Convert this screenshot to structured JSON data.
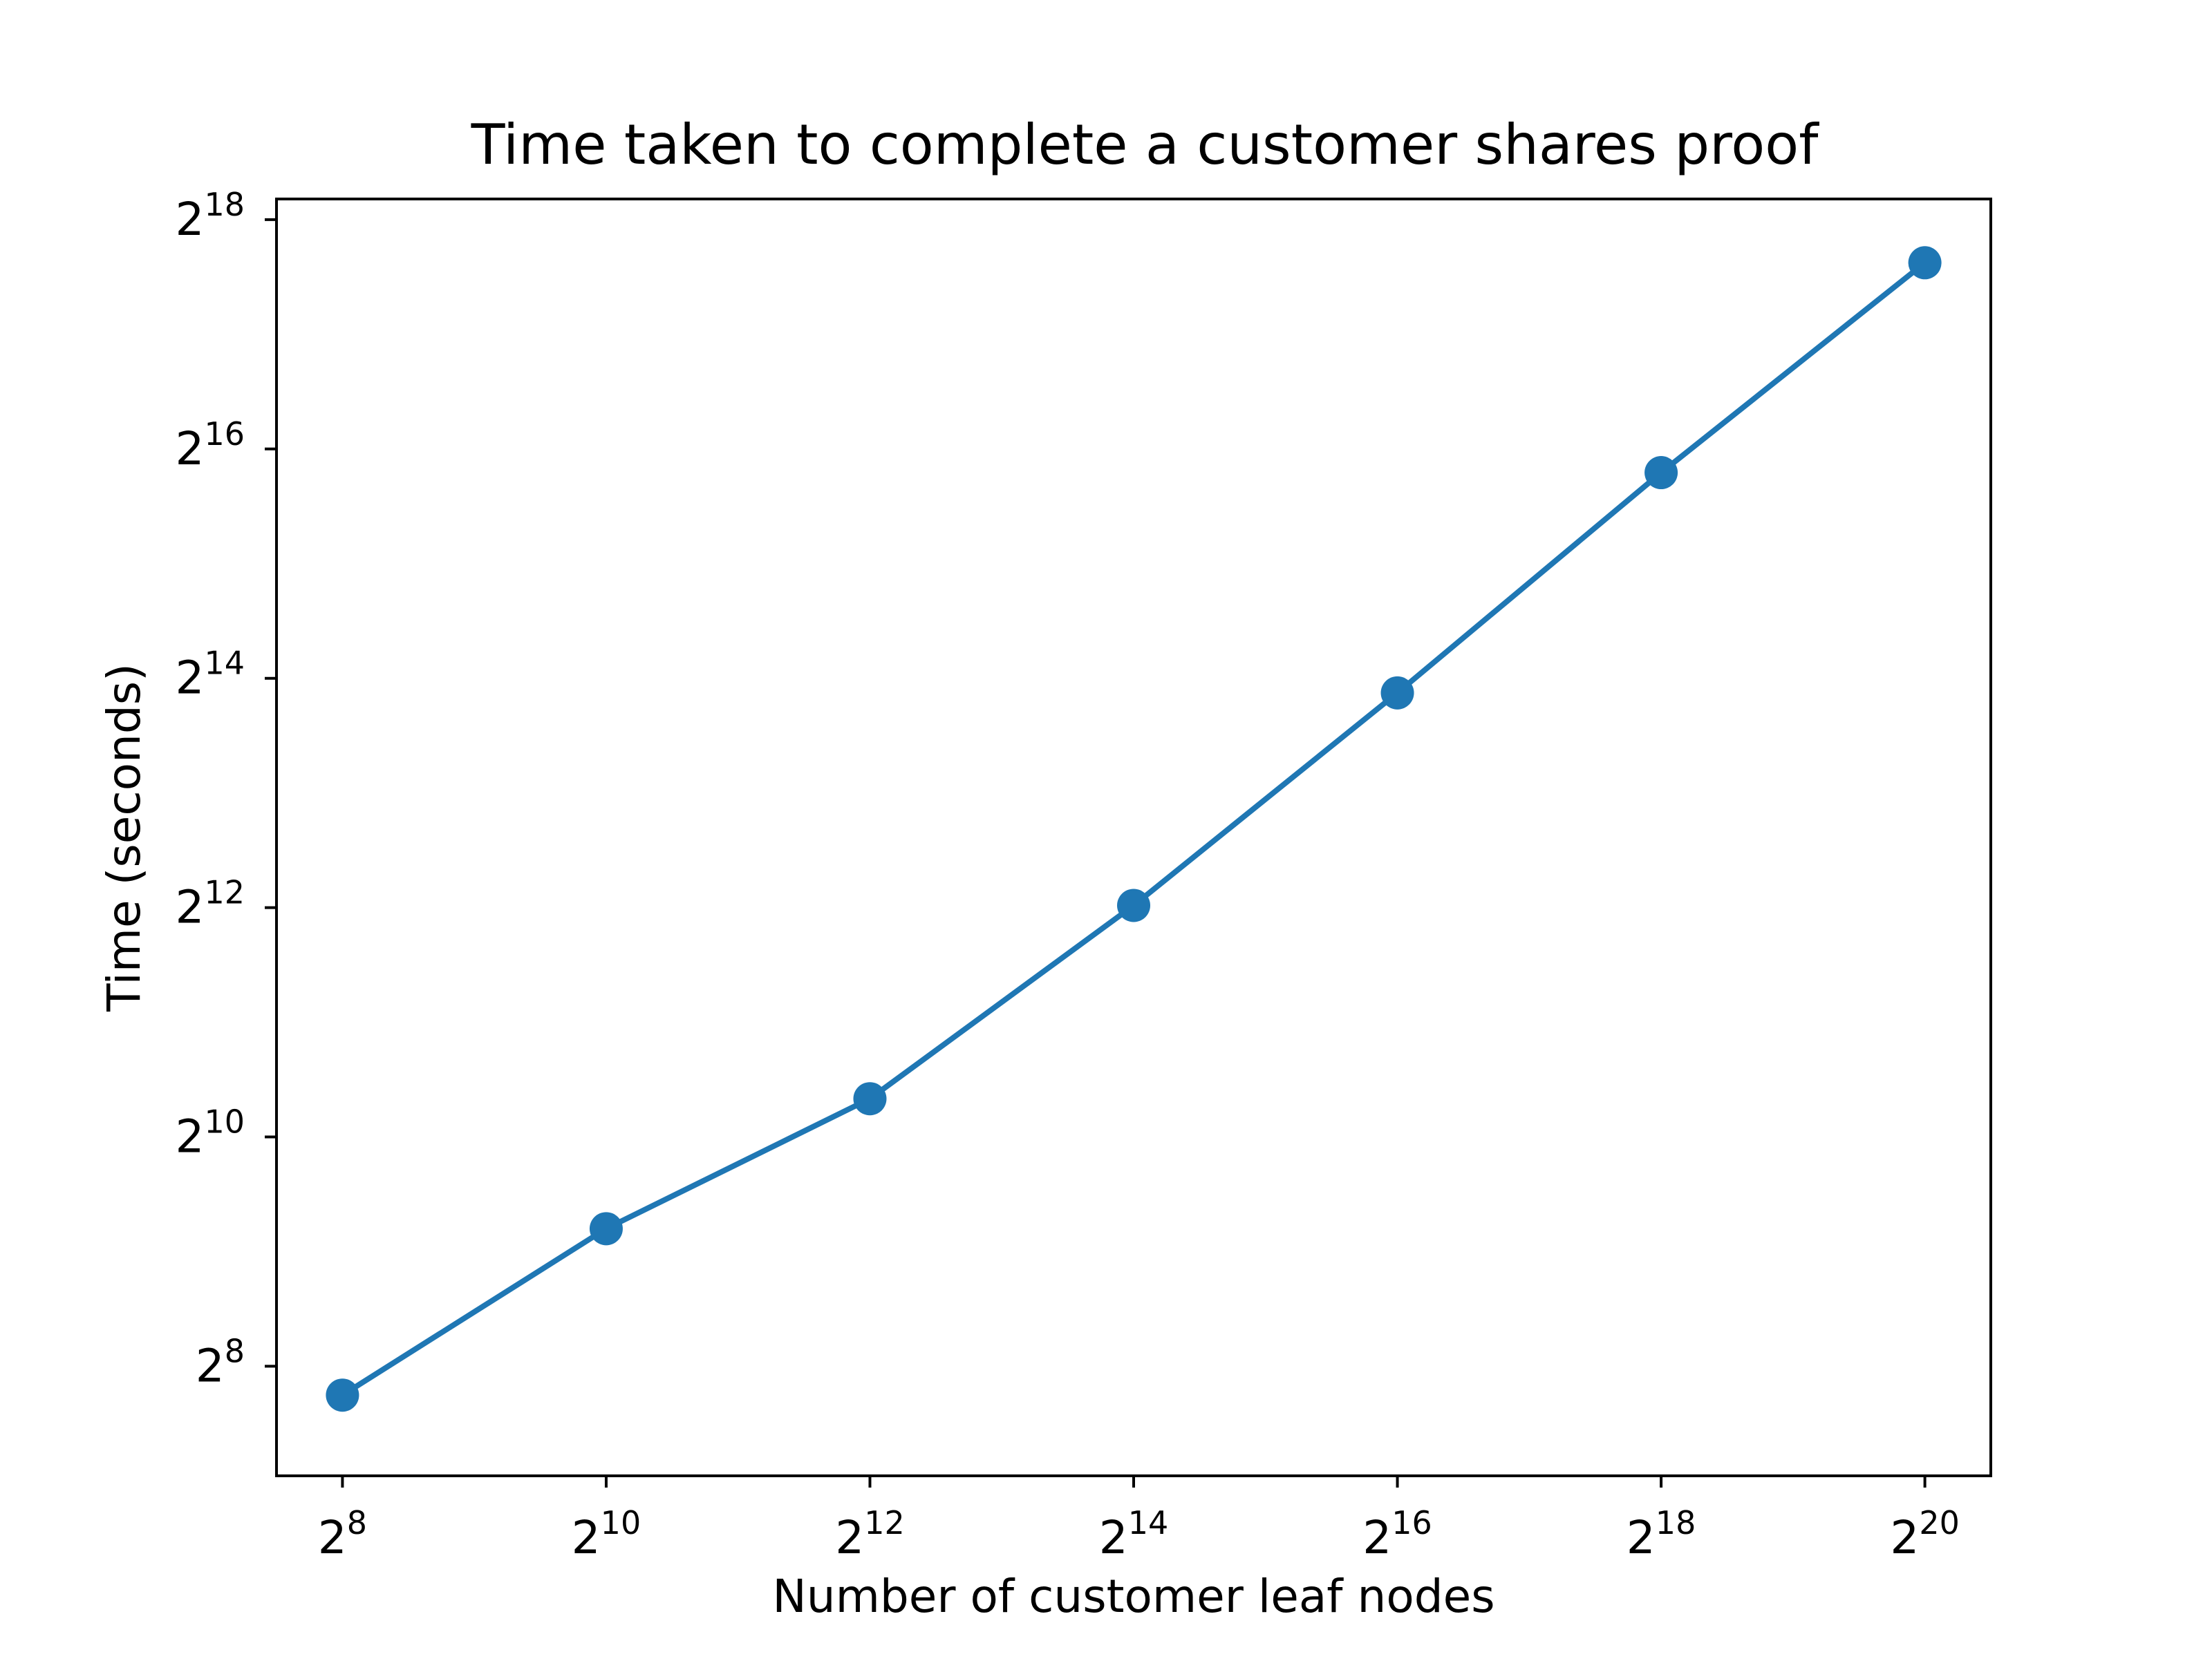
{
  "chart_data": {
    "type": "line",
    "title": "Time taken to complete a customer shares proof",
    "xlabel": "Number of customer leaf nodes",
    "ylabel": "Time (seconds)",
    "x_scale": "log2",
    "y_scale": "log2",
    "x": [
      256,
      1024,
      4096,
      16384,
      65536,
      262144,
      1048576
    ],
    "series": [
      {
        "name": "",
        "color": "#1f77b4",
        "marker": "circle",
        "values": [
          215,
          588,
          1290,
          4150,
          15000,
          56800,
          202000
        ]
      }
    ],
    "xlim": [
      181,
      1482910
    ],
    "ylim": [
      132,
      297000
    ],
    "x_ticks": [
      {
        "value": 256,
        "base": "2",
        "exp": "8"
      },
      {
        "value": 1024,
        "base": "2",
        "exp": "10"
      },
      {
        "value": 4096,
        "base": "2",
        "exp": "12"
      },
      {
        "value": 16384,
        "base": "2",
        "exp": "14"
      },
      {
        "value": 65536,
        "base": "2",
        "exp": "16"
      },
      {
        "value": 262144,
        "base": "2",
        "exp": "18"
      },
      {
        "value": 1048576,
        "base": "2",
        "exp": "20"
      }
    ],
    "y_ticks": [
      {
        "value": 256,
        "base": "2",
        "exp": "8"
      },
      {
        "value": 1024,
        "base": "2",
        "exp": "10"
      },
      {
        "value": 4096,
        "base": "2",
        "exp": "12"
      },
      {
        "value": 16384,
        "base": "2",
        "exp": "14"
      },
      {
        "value": 65536,
        "base": "2",
        "exp": "16"
      },
      {
        "value": 262144,
        "base": "2",
        "exp": "18"
      }
    ],
    "grid": false,
    "legend": "none"
  }
}
